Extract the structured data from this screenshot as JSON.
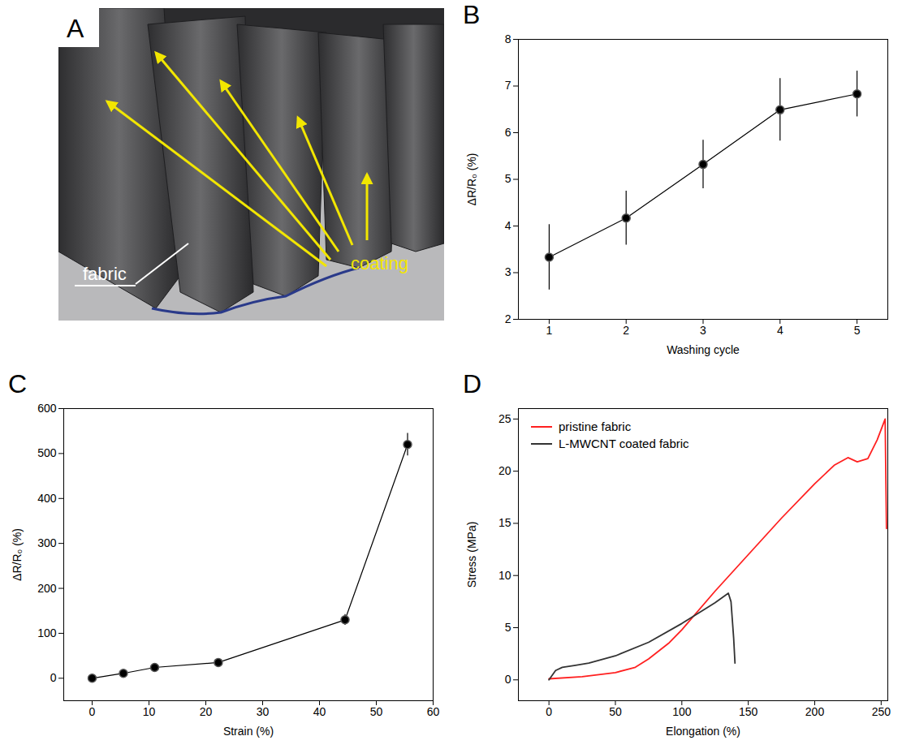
{
  "image": {
    "panel": "A",
    "annotations": [
      "coating",
      "fabric"
    ]
  },
  "chart_data": [
    {
      "panel": "B",
      "type": "line",
      "xlabel": "Washing cycle",
      "ylabel": "ΔR/R₀ (%)",
      "x": [
        1,
        2,
        3,
        4,
        5
      ],
      "values": [
        3.33,
        4.17,
        5.32,
        6.49,
        6.83
      ],
      "errors": [
        0.7,
        0.58,
        0.52,
        0.67,
        0.49
      ],
      "color": "#000000",
      "marker": "circle",
      "xlim": [
        0.6,
        5.4
      ],
      "xticks": [
        1,
        2,
        3,
        4,
        5
      ],
      "ylim": [
        2,
        8
      ],
      "yticks": [
        2,
        3,
        4,
        5,
        6,
        7,
        8
      ]
    },
    {
      "panel": "C",
      "type": "line",
      "xlabel": "Strain (%)",
      "ylabel": "ΔR/R₀ (%)",
      "x": [
        0,
        5.5,
        11,
        22.2,
        44.5,
        55.5
      ],
      "values": [
        0,
        11,
        24,
        35,
        130,
        520
      ],
      "errors": [
        2,
        3,
        3,
        4,
        12,
        25
      ],
      "color": "#000000",
      "marker": "circle",
      "xlim": [
        -5,
        60
      ],
      "xticks": [
        0,
        10,
        20,
        30,
        40,
        50,
        60
      ],
      "ylim": [
        -50,
        600
      ],
      "yticks": [
        0,
        100,
        200,
        300,
        400,
        500,
        600
      ]
    },
    {
      "panel": "D",
      "type": "line",
      "xlabel": "Elongation (%)",
      "ylabel": "Stress (MPa)",
      "legend": "top-left",
      "series": [
        {
          "name": "pristine fabric",
          "color": "#ff2020",
          "x": [
            0,
            25,
            50,
            65,
            75,
            90,
            100,
            125,
            150,
            175,
            200,
            215,
            225,
            232,
            240,
            247,
            253,
            254
          ],
          "values": [
            0.1,
            0.3,
            0.7,
            1.2,
            2,
            3.5,
            4.8,
            8.5,
            12,
            15.5,
            18.8,
            20.6,
            21.3,
            20.9,
            21.2,
            23,
            25,
            14.5
          ]
        },
        {
          "name": "L-MWCNT coated fabric",
          "color": "#333333",
          "x": [
            0,
            5,
            10,
            20,
            30,
            50,
            75,
            100,
            125,
            135,
            137,
            139,
            140
          ],
          "values": [
            0,
            0.9,
            1.2,
            1.4,
            1.6,
            2.3,
            3.6,
            5.4,
            7.4,
            8.3,
            7.5,
            4,
            1.6
          ]
        }
      ],
      "xlim": [
        -23,
        255
      ],
      "xticks": [
        0,
        50,
        100,
        150,
        200,
        250
      ],
      "ylim": [
        -2,
        26
      ],
      "yticks": [
        0,
        5,
        10,
        15,
        20,
        25
      ]
    }
  ]
}
